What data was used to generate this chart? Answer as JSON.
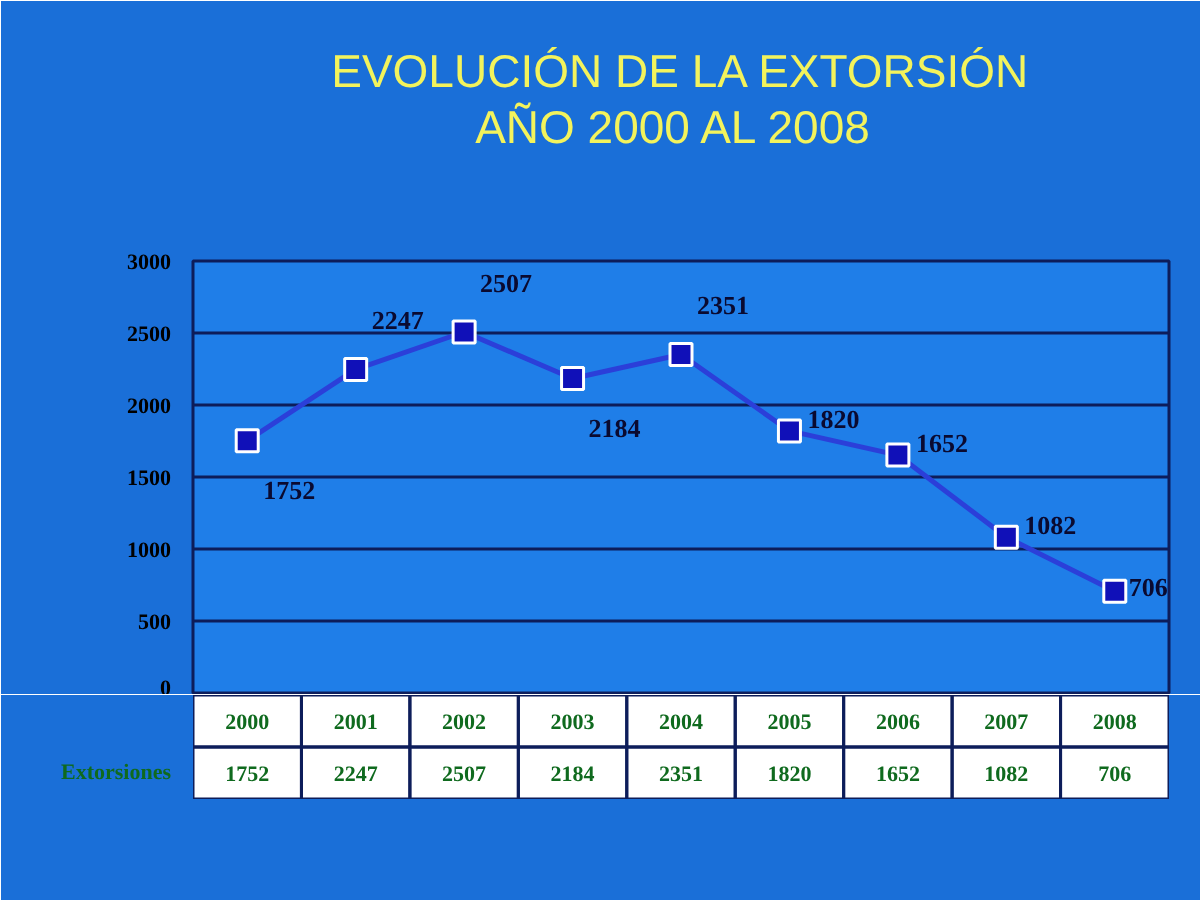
{
  "chart_data": {
    "type": "line",
    "title": "EVOLUCIÓN DE LA EXTORSIÓN",
    "subtitle": "AÑO 2000  AL 2008",
    "categories": [
      "2000",
      "2001",
      "2002",
      "2003",
      "2004",
      "2005",
      "2006",
      "2007",
      "2008"
    ],
    "series": [
      {
        "name": "Extorsiones",
        "color": "#2b3fd9",
        "values": [
          1752,
          2247,
          2507,
          2184,
          2351,
          1820,
          1652,
          1082,
          706
        ]
      }
    ],
    "ylim": [
      0,
      3000
    ],
    "yticks": [
      0,
      500,
      1000,
      1500,
      2000,
      2500,
      3000
    ],
    "grid": "y",
    "marker": "square",
    "data_labels": true,
    "annotations": [
      {
        "text": "1752",
        "x": "2000",
        "y": 1752
      },
      {
        "text": "2247",
        "x": "2001",
        "y": 2247
      },
      {
        "text": "2507",
        "x": "2002",
        "y": 2507
      },
      {
        "text": "2184",
        "x": "2003",
        "y": 2184
      },
      {
        "text": "2351",
        "x": "2004",
        "y": 2351
      },
      {
        "text": "1820",
        "x": "2005",
        "y": 1820
      },
      {
        "text": "1652",
        "x": "2006",
        "y": 1652
      },
      {
        "text": "1082",
        "x": "2007",
        "y": 1082
      },
      {
        "text": "706",
        "x": "2008",
        "y": 706
      }
    ]
  }
}
